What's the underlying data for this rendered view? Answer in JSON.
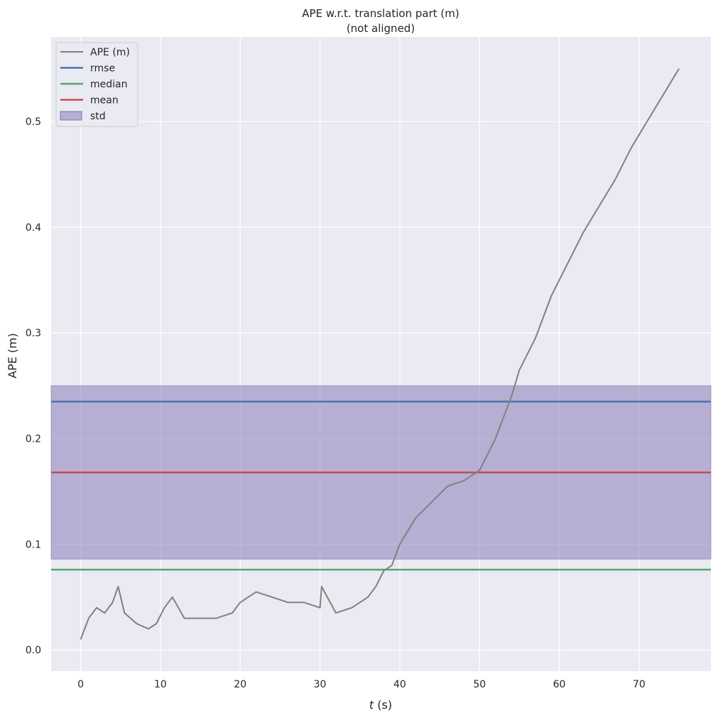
{
  "chart_data": {
    "type": "line",
    "title": "APE w.r.t. translation part (m)",
    "subtitle": "(not aligned)",
    "xlabel_var": "t",
    "xlabel_unit": " (s)",
    "ylabel": "APE (m)",
    "xlim": [
      -3.7,
      79
    ],
    "ylim": [
      -0.02,
      0.58
    ],
    "xticks": [
      0,
      10,
      20,
      30,
      40,
      50,
      60,
      70
    ],
    "yticks": [
      0.0,
      0.1,
      0.2,
      0.3,
      0.4,
      0.5
    ],
    "ytick_labels": [
      "0.0",
      "0.1",
      "0.2",
      "0.3",
      "0.4",
      "0.5"
    ],
    "grid": true,
    "legend_position": "top-left",
    "background": "#eaeaf2",
    "series": [
      {
        "name": "APE (m)",
        "color": "#808080",
        "x": [
          0,
          1,
          2,
          3,
          4,
          4.7,
          5.5,
          7,
          8.5,
          9.5,
          10.5,
          11.5,
          13,
          15,
          17,
          19,
          20,
          22,
          24,
          26,
          28,
          30,
          30.2,
          32,
          34,
          36,
          37,
          38,
          39,
          40,
          42,
          44,
          46,
          48,
          50,
          51,
          52,
          53,
          54,
          55,
          57,
          59,
          61,
          63,
          65,
          67,
          69,
          71,
          73,
          75
        ],
        "y": [
          0.01,
          0.03,
          0.04,
          0.035,
          0.045,
          0.06,
          0.035,
          0.025,
          0.02,
          0.025,
          0.04,
          0.05,
          0.03,
          0.03,
          0.03,
          0.035,
          0.045,
          0.055,
          0.05,
          0.045,
          0.045,
          0.04,
          0.06,
          0.035,
          0.04,
          0.05,
          0.06,
          0.075,
          0.08,
          0.1,
          0.125,
          0.14,
          0.155,
          0.16,
          0.17,
          0.185,
          0.2,
          0.22,
          0.24,
          0.265,
          0.295,
          0.335,
          0.365,
          0.395,
          0.42,
          0.445,
          0.475,
          0.5,
          0.525,
          0.55
        ]
      },
      {
        "name": "rmse",
        "color": "#4c72b0",
        "hline": 0.235
      },
      {
        "name": "median",
        "color": "#55a868",
        "hline": 0.076
      },
      {
        "name": "mean",
        "color": "#c44e52",
        "hline": 0.168
      },
      {
        "name": "std",
        "color": "#8172b3",
        "band": [
          0.086,
          0.25
        ]
      }
    ]
  }
}
